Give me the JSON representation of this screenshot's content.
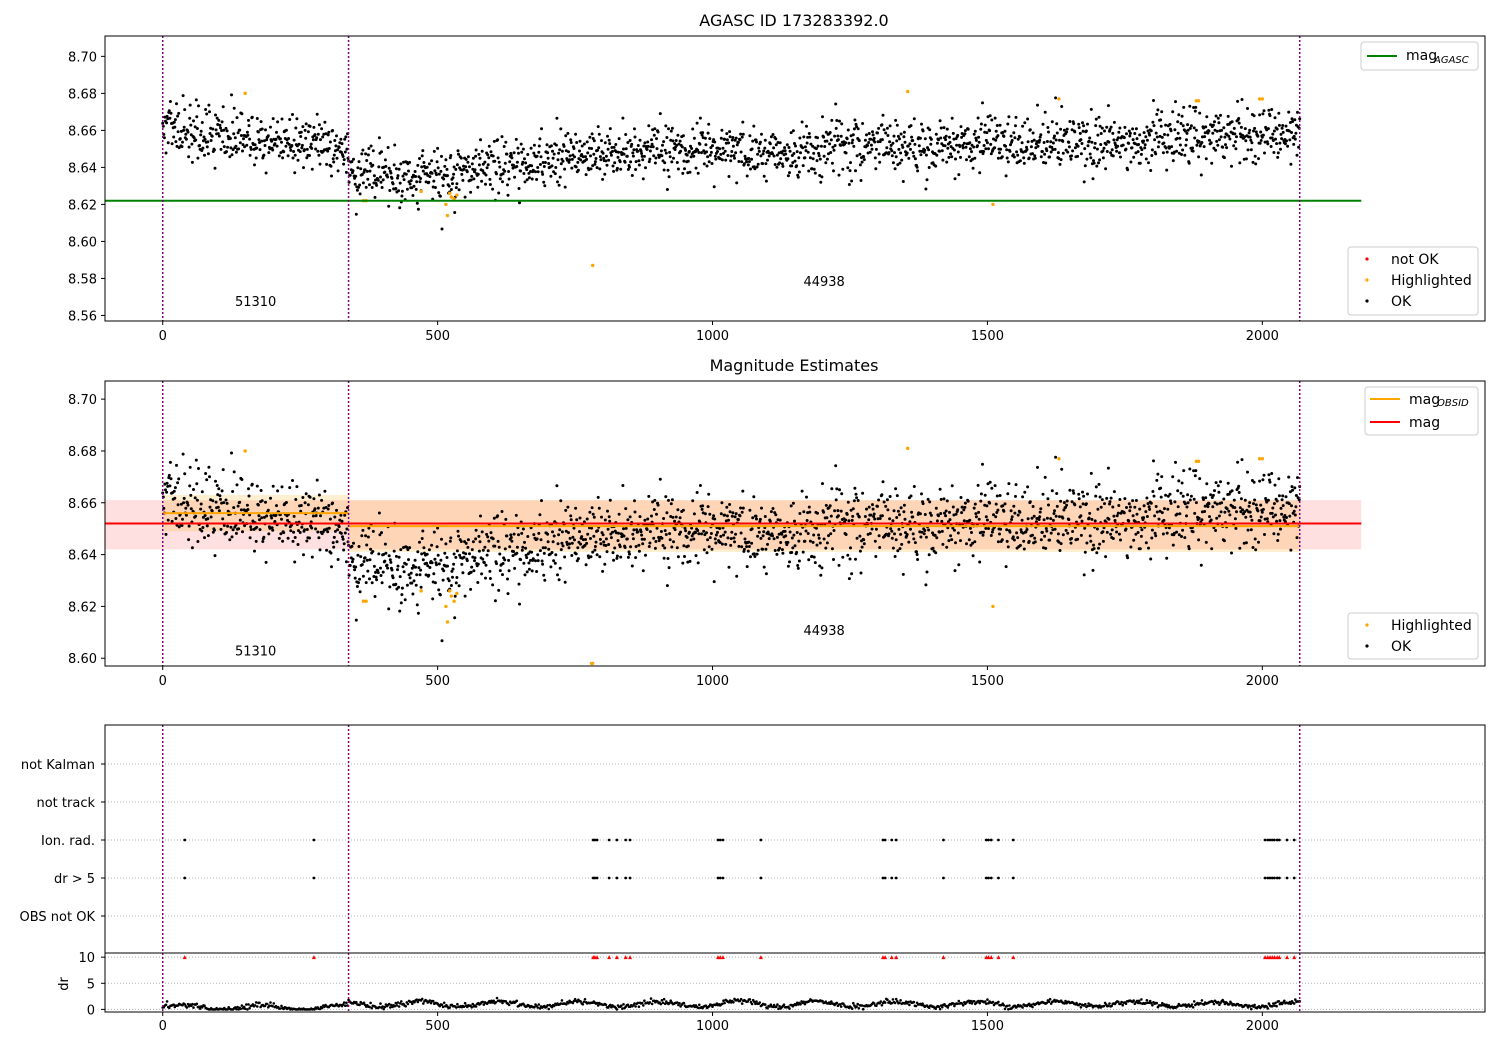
{
  "chart_data": [
    {
      "type": "scatter",
      "title": "AGASC ID 173283392.0",
      "x_ticks": [
        "0",
        "500",
        "1000",
        "1500",
        "2000"
      ],
      "y_ticks": [
        "8.56",
        "8.58",
        "8.60",
        "8.62",
        "8.64",
        "8.66",
        "8.68",
        "8.70"
      ],
      "xlim": [
        -105,
        2405
      ],
      "ylim": [
        8.557,
        8.711
      ],
      "obsid_boundaries": [
        0,
        338,
        2068
      ],
      "obsid_labels": [
        {
          "text": "51310",
          "x": 169,
          "y": 8.565
        },
        {
          "text": "44938",
          "x": 1203,
          "y": 8.576
        }
      ],
      "mag_agasc": 8.622,
      "lines": [
        {
          "name": "mag_AGASC",
          "value": 8.622,
          "x_range": [
            -105,
            2180
          ],
          "color": "#008000"
        }
      ],
      "legend_upper": [
        {
          "label": "mag",
          "sub": "AGASC",
          "color": "#008000"
        }
      ],
      "legend_lower": [
        {
          "label": "not OK",
          "color": "#ff0000"
        },
        {
          "label": "Highlighted",
          "color": "#ffa500"
        },
        {
          "label": "OK",
          "color": "#000000"
        }
      ],
      "highlighted_points": [
        [
          150,
          8.68
        ],
        [
          365,
          8.622
        ],
        [
          370,
          8.622
        ],
        [
          470,
          8.627
        ],
        [
          515,
          8.62
        ],
        [
          518,
          8.614
        ],
        [
          522,
          8.626
        ],
        [
          525,
          8.624
        ],
        [
          530,
          8.623
        ],
        [
          535,
          8.625
        ],
        [
          782,
          8.587
        ],
        [
          1355,
          8.681
        ],
        [
          1510,
          8.62
        ],
        [
          1630,
          8.677
        ],
        [
          1880,
          8.676
        ],
        [
          1884,
          8.676
        ],
        [
          1995,
          8.677
        ],
        [
          2000,
          8.677
        ]
      ]
    },
    {
      "type": "scatter",
      "title": "Magnitude Estimates",
      "x_ticks": [
        "0",
        "500",
        "1000",
        "1500",
        "2000"
      ],
      "y_ticks": [
        "8.60",
        "8.62",
        "8.64",
        "8.66",
        "8.68",
        "8.70"
      ],
      "xlim": [
        -105,
        2405
      ],
      "ylim": [
        8.597,
        8.707
      ],
      "obsid_boundaries": [
        0,
        338,
        2068
      ],
      "obsid_labels": [
        {
          "text": "51310",
          "x": 169,
          "y": 8.601
        },
        {
          "text": "44938",
          "x": 1203,
          "y": 8.609
        }
      ],
      "mag": 8.652,
      "mag_band": [
        8.642,
        8.661
      ],
      "mag_obsid": [
        {
          "x_range": [
            0,
            338
          ],
          "value": 8.656,
          "band": [
            8.649,
            8.663
          ]
        },
        {
          "x_range": [
            338,
            2068
          ],
          "value": 8.651,
          "band": [
            8.641,
            8.661
          ]
        }
      ],
      "legend_upper": [
        {
          "label": "mag",
          "sub": "OBSID",
          "color": "#ffa500"
        },
        {
          "label": "mag",
          "sub": "",
          "color": "#ff0000"
        }
      ],
      "legend_lower": [
        {
          "label": "Highlighted",
          "color": "#ffa500"
        },
        {
          "label": "OK",
          "color": "#000000"
        }
      ],
      "highlighted_points": [
        [
          150,
          8.68
        ],
        [
          365,
          8.622
        ],
        [
          370,
          8.622
        ],
        [
          470,
          8.626
        ],
        [
          515,
          8.62
        ],
        [
          518,
          8.614
        ],
        [
          522,
          8.626
        ],
        [
          525,
          8.624
        ],
        [
          530,
          8.622
        ],
        [
          535,
          8.625
        ],
        [
          780,
          8.598
        ],
        [
          782,
          8.598
        ],
        [
          1355,
          8.681
        ],
        [
          1510,
          8.62
        ],
        [
          1630,
          8.677
        ],
        [
          1880,
          8.676
        ],
        [
          1884,
          8.676
        ],
        [
          1995,
          8.677
        ],
        [
          2000,
          8.677
        ]
      ]
    },
    {
      "type": "scatter",
      "title": "",
      "category_labels": [
        "not Kalman",
        "not track",
        "Ion. rad.",
        "dr > 5",
        "OBS not OK"
      ],
      "flag_x": [
        40,
        275,
        783,
        786,
        790,
        812,
        826,
        842,
        850,
        1010,
        1014,
        1019,
        1088,
        1310,
        1314,
        1326,
        1334,
        1420,
        1498,
        1502,
        1507,
        1520,
        1547,
        2005,
        2010,
        2014,
        2018,
        2022,
        2027,
        2031,
        2045,
        2058
      ],
      "x_ticks": [
        "0",
        "500",
        "1000",
        "1500",
        "2000"
      ],
      "dr_ylabel": "dr",
      "dr_ticks": [
        "0",
        "5",
        "10"
      ],
      "dr_ylim": [
        -0.5,
        10.8
      ],
      "obsid_boundaries": [
        0,
        338,
        2068
      ]
    }
  ]
}
